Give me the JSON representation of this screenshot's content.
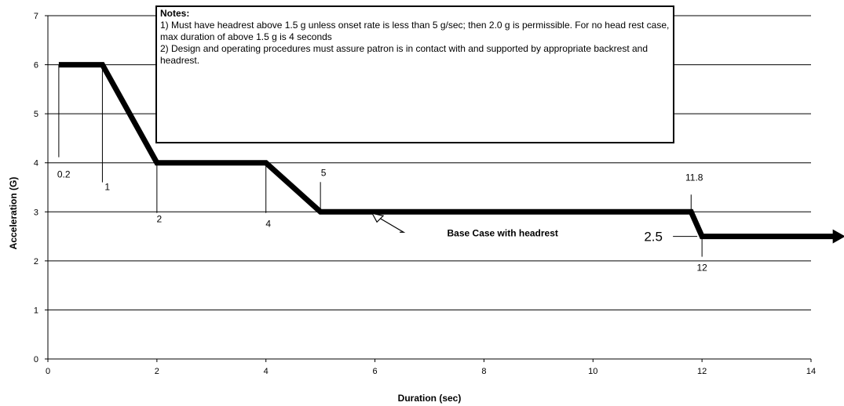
{
  "chart_data": {
    "type": "line",
    "xlabel": "Duration (sec)",
    "ylabel": "Acceleration (G)",
    "xlim": [
      0,
      14
    ],
    "ylim": [
      0,
      7
    ],
    "xticks": [
      0,
      2,
      4,
      6,
      8,
      10,
      12,
      14
    ],
    "yticks": [
      0,
      1,
      2,
      3,
      4,
      5,
      6,
      7
    ],
    "grid": "horizontal",
    "series": [
      {
        "name": "Base Case with headrest",
        "x": [
          0.2,
          1,
          2,
          4,
          5,
          11.8,
          12,
          14.6
        ],
        "y": [
          6,
          6,
          4,
          4,
          3,
          3,
          2.5,
          2.5
        ]
      }
    ],
    "point_labels": [
      {
        "text": "0.2",
        "x": 0.2,
        "y": 6
      },
      {
        "text": "1",
        "x": 1,
        "y": 6
      },
      {
        "text": "2",
        "x": 2,
        "y": 4
      },
      {
        "text": "4",
        "x": 4,
        "y": 4
      },
      {
        "text": "5",
        "x": 5,
        "y": 3
      },
      {
        "text": "11.8",
        "x": 11.8,
        "y": 3
      },
      {
        "text": "12",
        "x": 12,
        "y": 2.5
      },
      {
        "text": "2.5",
        "x": 12,
        "y": 2.5
      }
    ],
    "annotation": "Base Case with headrest",
    "notes": {
      "title": "Notes:",
      "lines": [
        "1) Must have headrest above 1.5 g unless onset rate is less than 5 g/sec; then 2.0 g is permissible.   For no head rest case, max duration of above 1.5 g is 4 seconds",
        "2) Design and operating procedures must assure patron is in contact with and supported by appropriate backrest and headrest."
      ]
    }
  }
}
